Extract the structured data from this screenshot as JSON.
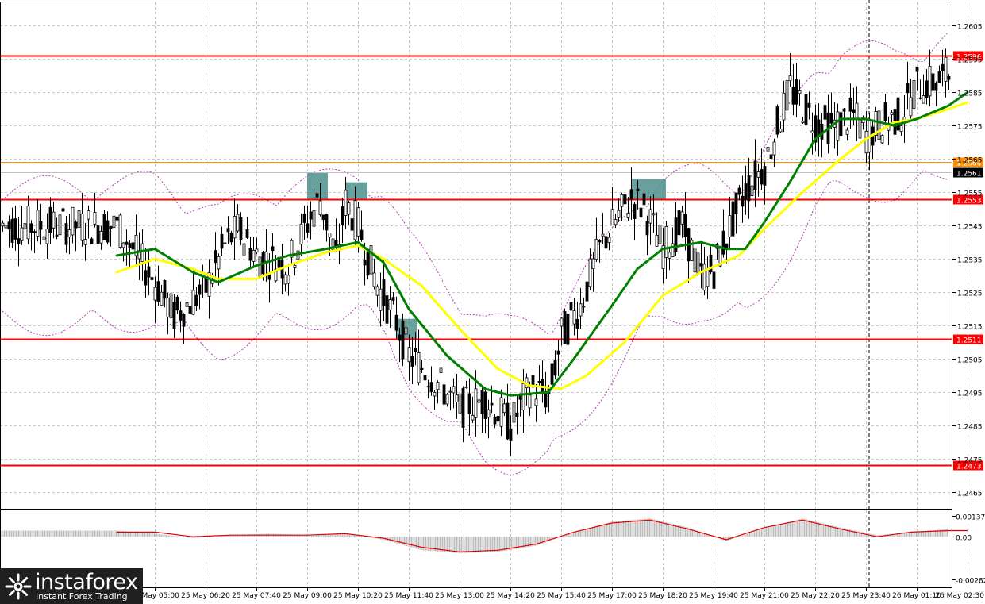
{
  "chart_data": {
    "type": "candlestick",
    "title": "",
    "price_axis": {
      "ylim": [
        1.246,
        1.2612
      ],
      "tick_labels": [
        "1.2605",
        "1.2595",
        "1.2585",
        "1.2575",
        "1.2565",
        "1.2555",
        "1.2545",
        "1.2535",
        "1.2525",
        "1.2515",
        "1.2505",
        "1.2495",
        "1.2485",
        "1.2475",
        "1.2465"
      ],
      "tick_values": [
        1.2605,
        1.2595,
        1.2585,
        1.2575,
        1.2565,
        1.2555,
        1.2545,
        1.2535,
        1.2525,
        1.2515,
        1.2505,
        1.2495,
        1.2485,
        1.2475,
        1.2465
      ]
    },
    "time_axis": {
      "tick_labels": [
        "25 May 05:00",
        "25 May 06:20",
        "25 May 07:40",
        "25 May 09:00",
        "25 May 10:20",
        "25 May 11:40",
        "25 May 13:00",
        "25 May 14:20",
        "25 May 15:40",
        "25 May 17:00",
        "25 May 18:20",
        "25 May 19:40",
        "25 May 21:00",
        "25 May 22:20",
        "25 May 23:40",
        "26 May 01:10",
        "26 May 02:30"
      ]
    },
    "levels": [
      {
        "label": "1.2596",
        "value": 1.2596,
        "color": "#ff0000"
      },
      {
        "label": "1.2564",
        "value": 1.2564,
        "color": "#ff8c00"
      },
      {
        "label": "1.2553",
        "value": 1.2553,
        "color": "#ff0000"
      },
      {
        "label": "1.2511",
        "value": 1.2511,
        "color": "#ff0000"
      },
      {
        "label": "1.2473",
        "value": 1.2473,
        "color": "#ff0000"
      }
    ],
    "current_price": {
      "label": "1.2561",
      "value": 1.2561
    },
    "marked_zones": [
      {
        "from": "25 May 09:00",
        "to": "25 May 09:20",
        "low": 1.2553,
        "high": 1.2561
      },
      {
        "from": "25 May 10:00",
        "to": "25 May 10:35",
        "low": 1.2553,
        "high": 1.2558
      },
      {
        "from": "25 May 11:20",
        "to": "25 May 11:45",
        "low": 1.2511,
        "high": 1.2517
      },
      {
        "from": "25 May 17:30",
        "to": "25 May 18:25",
        "low": 1.2553,
        "high": 1.2559
      }
    ],
    "close_path": [
      [
        "25 May 04:00",
        1.2545
      ],
      [
        "25 May 05:00",
        1.2528
      ],
      [
        "25 May 05:30",
        1.2518
      ],
      [
        "25 May 06:20",
        1.2526
      ],
      [
        "25 May 06:50",
        1.2539
      ],
      [
        "25 May 07:10",
        1.2544
      ],
      [
        "25 May 07:40",
        1.2536
      ],
      [
        "25 May 08:30",
        1.2533
      ],
      [
        "25 May 09:00",
        1.2546
      ],
      [
        "25 May 09:20",
        1.2553
      ],
      [
        "25 May 09:45",
        1.2535
      ],
      [
        "25 May 10:00",
        1.2552
      ],
      [
        "25 May 10:20",
        1.2545
      ],
      [
        "25 May 10:50",
        1.2527
      ],
      [
        "25 May 11:20",
        1.2516
      ],
      [
        "25 May 11:40",
        1.2506
      ],
      [
        "25 May 12:20",
        1.2499
      ],
      [
        "25 May 13:00",
        1.249
      ],
      [
        "25 May 13:40",
        1.2493
      ],
      [
        "25 May 14:20",
        1.2485
      ],
      [
        "25 May 14:50",
        1.2496
      ],
      [
        "25 May 15:20",
        1.2494
      ],
      [
        "25 May 15:40",
        1.2512
      ],
      [
        "25 May 16:10",
        1.2521
      ],
      [
        "25 May 16:40",
        1.2538
      ],
      [
        "25 May 17:00",
        1.2545
      ],
      [
        "25 May 17:30",
        1.2553
      ],
      [
        "25 May 17:50",
        1.255
      ],
      [
        "25 May 18:20",
        1.2538
      ],
      [
        "25 May 18:50",
        1.2545
      ],
      [
        "25 May 19:20",
        1.253
      ],
      [
        "25 May 19:40",
        1.2532
      ],
      [
        "25 May 20:00",
        1.2542
      ],
      [
        "25 May 20:30",
        1.2556
      ],
      [
        "25 May 21:00",
        1.2563
      ],
      [
        "25 May 21:20",
        1.2575
      ],
      [
        "25 May 21:40",
        1.2586
      ],
      [
        "25 May 22:20",
        1.2576
      ],
      [
        "25 May 22:50",
        1.2575
      ],
      [
        "25 May 23:20",
        1.2578
      ],
      [
        "25 May 23:40",
        1.2572
      ],
      [
        "26 May 00:10",
        1.2576
      ],
      [
        "26 May 00:40",
        1.2578
      ],
      [
        "26 May 01:10",
        1.2587
      ],
      [
        "26 May 01:40",
        1.2588
      ],
      [
        "26 May 02:10",
        1.2592
      ],
      [
        "26 May 02:30",
        1.2586
      ]
    ],
    "moving_averages": [
      {
        "color": "#008000",
        "points": [
          [
            "25 May 04:00",
            1.2536
          ],
          [
            "25 May 05:00",
            1.2538
          ],
          [
            "25 May 06:00",
            1.2531
          ],
          [
            "25 May 06:40",
            1.2528
          ],
          [
            "25 May 07:40",
            1.2533
          ],
          [
            "25 May 08:30",
            1.2536
          ],
          [
            "25 May 09:30",
            1.2538
          ],
          [
            "25 May 10:20",
            1.254
          ],
          [
            "25 May 11:00",
            1.2534
          ],
          [
            "25 May 11:40",
            1.252
          ],
          [
            "25 May 12:40",
            1.2506
          ],
          [
            "25 May 13:40",
            1.2496
          ],
          [
            "25 May 14:20",
            1.2494
          ],
          [
            "25 May 15:20",
            1.2495
          ],
          [
            "25 May 16:00",
            1.2505
          ],
          [
            "25 May 17:00",
            1.2521
          ],
          [
            "25 May 17:40",
            1.2532
          ],
          [
            "25 May 18:20",
            1.2538
          ],
          [
            "25 May 19:20",
            1.254
          ],
          [
            "25 May 20:00",
            1.2538
          ],
          [
            "25 May 20:30",
            1.2538
          ],
          [
            "25 May 21:00",
            1.2546
          ],
          [
            "25 May 21:40",
            1.2558
          ],
          [
            "25 May 22:20",
            1.2571
          ],
          [
            "25 May 23:00",
            1.2577
          ],
          [
            "25 May 23:40",
            1.2577
          ],
          [
            "26 May 00:30",
            1.2575
          ],
          [
            "26 May 01:10",
            1.2577
          ],
          [
            "26 May 02:00",
            1.2581
          ],
          [
            "26 May 02:30",
            1.2585
          ]
        ]
      },
      {
        "color": "#ffff00",
        "points": [
          [
            "25 May 04:00",
            1.2531
          ],
          [
            "25 May 05:00",
            1.2535
          ],
          [
            "25 May 06:00",
            1.2532
          ],
          [
            "25 May 06:40",
            1.2529
          ],
          [
            "25 May 07:40",
            1.2529
          ],
          [
            "25 May 08:30",
            1.2533
          ],
          [
            "25 May 09:30",
            1.2537
          ],
          [
            "25 May 10:20",
            1.2539
          ],
          [
            "25 May 11:00",
            1.2535
          ],
          [
            "25 May 12:00",
            1.2527
          ],
          [
            "25 May 13:00",
            1.2514
          ],
          [
            "25 May 14:00",
            1.2502
          ],
          [
            "25 May 14:50",
            1.2497
          ],
          [
            "25 May 15:40",
            1.2496
          ],
          [
            "25 May 16:20",
            1.25
          ],
          [
            "25 May 17:20",
            1.251
          ],
          [
            "25 May 18:20",
            1.2524
          ],
          [
            "25 May 19:20",
            1.2531
          ],
          [
            "25 May 20:20",
            1.2536
          ],
          [
            "25 May 21:00",
            1.2544
          ],
          [
            "25 May 22:00",
            1.2555
          ],
          [
            "25 May 23:00",
            1.2565
          ],
          [
            "25 May 23:40",
            1.2571
          ],
          [
            "26 May 00:30",
            1.2576
          ],
          [
            "26 May 01:10",
            1.2577
          ],
          [
            "26 May 02:00",
            1.258
          ],
          [
            "26 May 02:30",
            1.2582
          ]
        ]
      }
    ],
    "oscillator": {
      "tick_labels": [
        "0.00137",
        "0.00",
        "-0.00282"
      ],
      "tick_values": [
        0.00137,
        0.0,
        -0.00282
      ],
      "histogram": [
        [
          "25 May 04:00",
          0.0004
        ],
        [
          "25 May 05:00",
          0.0002
        ],
        [
          "25 May 06:00",
          -0.0001
        ],
        [
          "25 May 07:00",
          0.0001
        ],
        [
          "25 May 08:00",
          0.0002
        ],
        [
          "25 May 09:00",
          0.0001
        ],
        [
          "25 May 10:00",
          0.0002
        ],
        [
          "25 May 11:00",
          -0.0002
        ],
        [
          "25 May 12:00",
          -0.0009
        ],
        [
          "25 May 13:00",
          -0.0011
        ],
        [
          "25 May 14:00",
          -0.001
        ],
        [
          "25 May 15:00",
          -0.0006
        ],
        [
          "25 May 16:00",
          0.0003
        ],
        [
          "25 May 17:00",
          0.001
        ],
        [
          "25 May 18:00",
          0.0012
        ],
        [
          "25 May 19:00",
          0.0006
        ],
        [
          "25 May 20:00",
          -0.0003
        ],
        [
          "25 May 21:00",
          0.0006
        ],
        [
          "25 May 22:00",
          0.0012
        ],
        [
          "25 May 23:00",
          0.0006
        ],
        [
          "26 May 00:00",
          0.0001
        ],
        [
          "26 May 01:00",
          0.0003
        ],
        [
          "26 May 02:00",
          0.0005
        ],
        [
          "26 May 02:30",
          0.0005
        ]
      ],
      "signal": [
        [
          "25 May 04:00",
          0.0003
        ],
        [
          "25 May 05:00",
          0.0003
        ],
        [
          "25 May 06:00",
          0.0
        ],
        [
          "25 May 07:00",
          0.0001
        ],
        [
          "25 May 08:00",
          0.0001
        ],
        [
          "25 May 09:00",
          0.0001
        ],
        [
          "25 May 10:00",
          0.0002
        ],
        [
          "25 May 11:00",
          -0.0001
        ],
        [
          "25 May 12:00",
          -0.0007
        ],
        [
          "25 May 13:00",
          -0.001
        ],
        [
          "25 May 14:00",
          -0.0009
        ],
        [
          "25 May 15:00",
          -0.0005
        ],
        [
          "25 May 16:00",
          0.0003
        ],
        [
          "25 May 17:00",
          0.0009
        ],
        [
          "25 May 18:00",
          0.0011
        ],
        [
          "25 May 19:00",
          0.0005
        ],
        [
          "25 May 20:00",
          -0.0002
        ],
        [
          "25 May 21:00",
          0.0006
        ],
        [
          "25 May 22:00",
          0.0011
        ],
        [
          "25 May 23:00",
          0.0005
        ],
        [
          "26 May 00:00",
          0.0
        ],
        [
          "26 May 01:00",
          0.0003
        ],
        [
          "26 May 02:00",
          0.0004
        ],
        [
          "26 May 02:30",
          0.0004
        ]
      ]
    },
    "grid": true
  },
  "brand": {
    "name": "instaforex",
    "tagline": "Instant Forex Trading"
  }
}
